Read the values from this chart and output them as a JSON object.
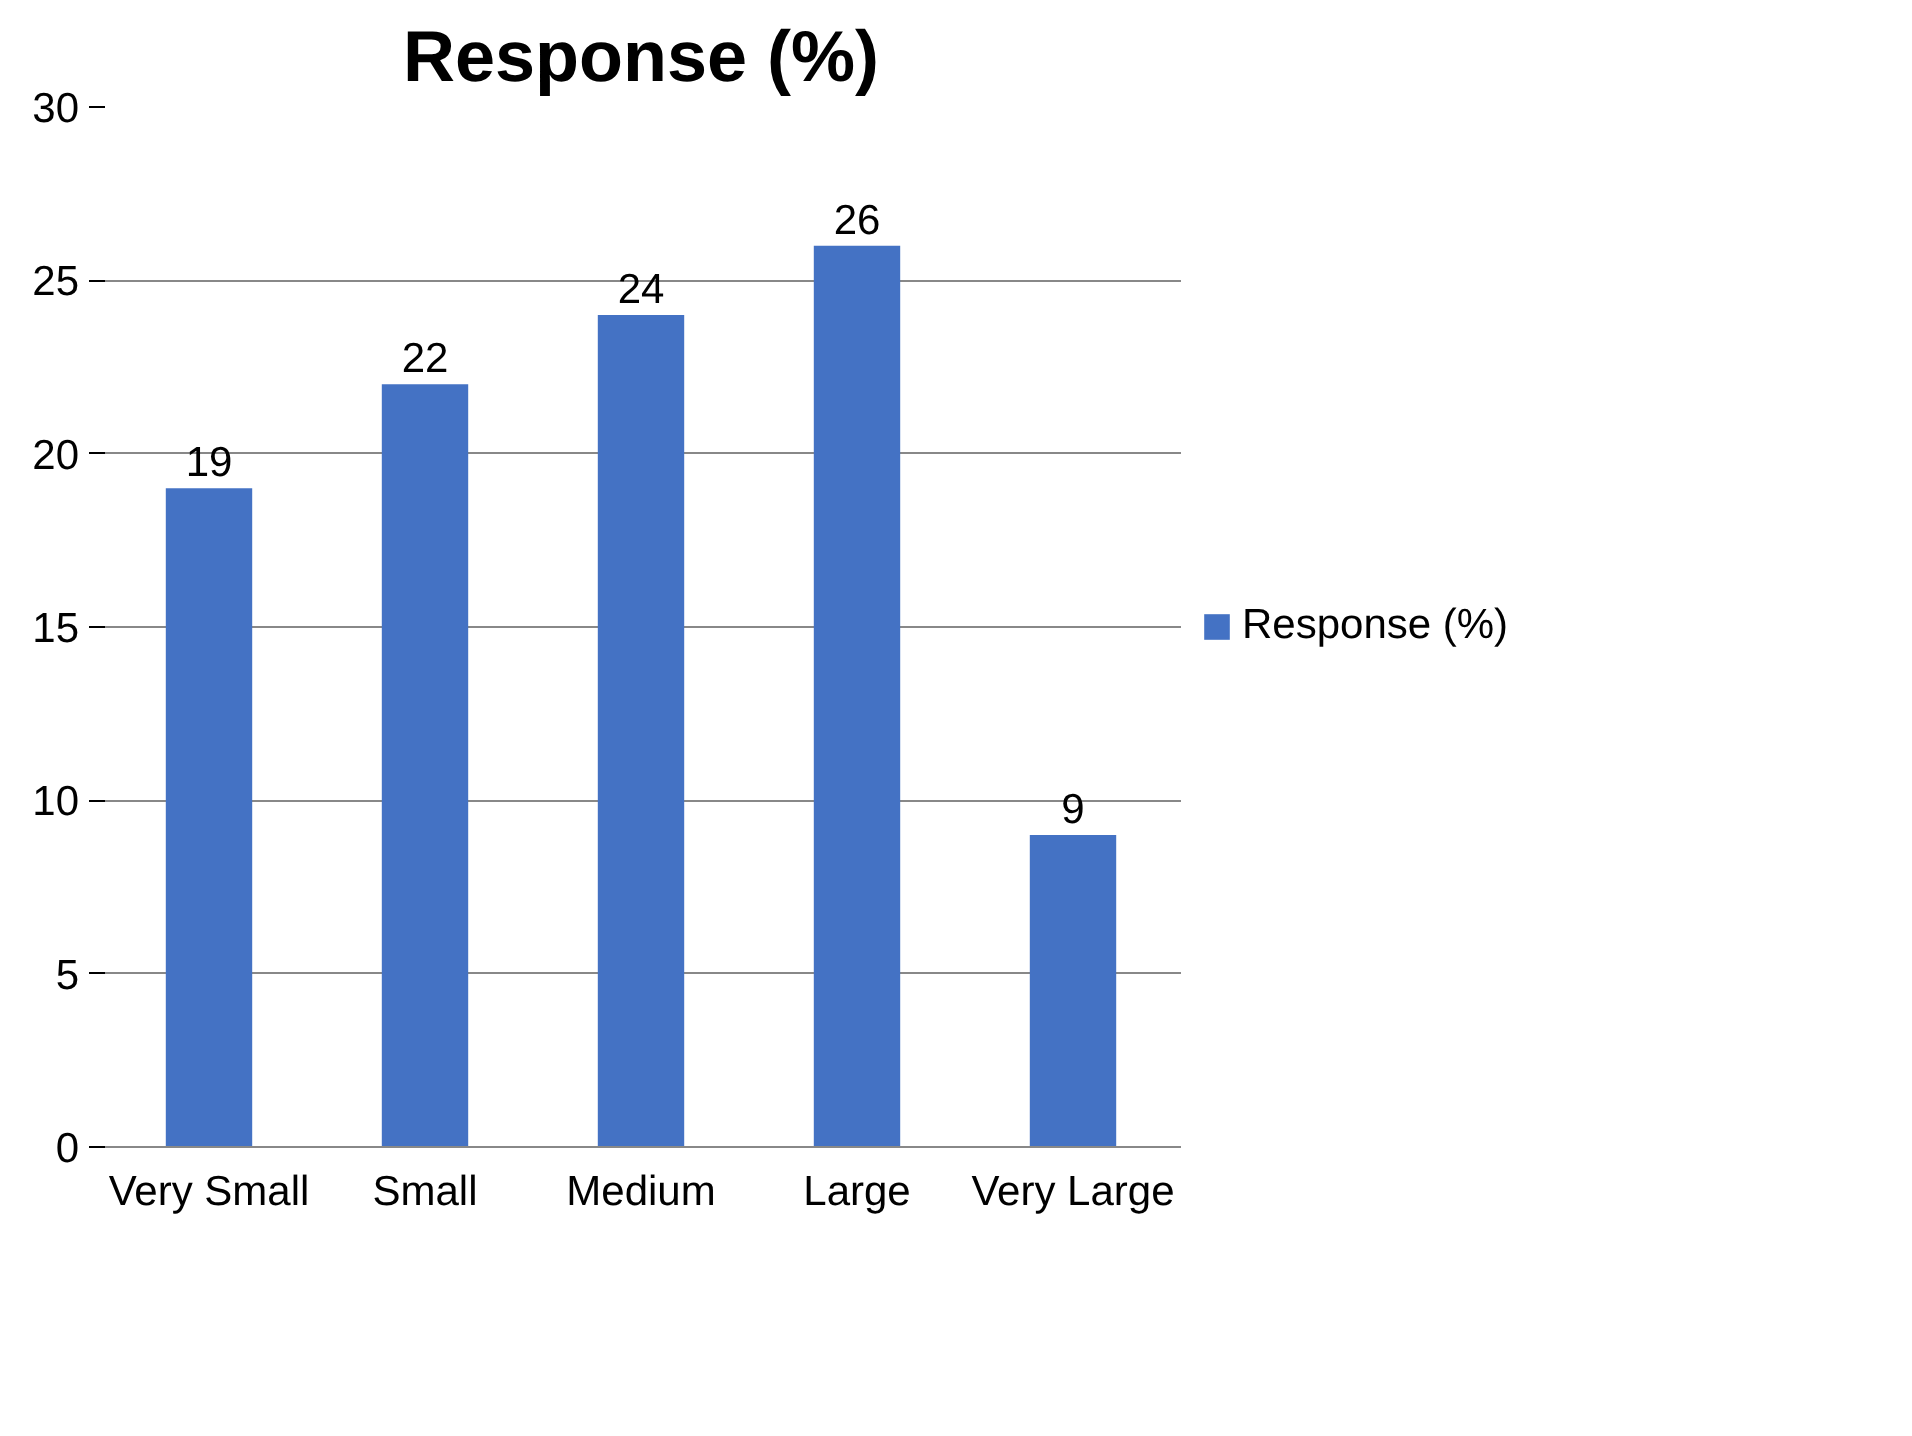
{
  "chart_data": {
    "type": "bar",
    "title": "Response (%)",
    "categories": [
      "Very Small",
      "Small",
      "Medium",
      "Large",
      "Very Large"
    ],
    "series": [
      {
        "name": "Response (%)",
        "color": "#4472c4",
        "values": [
          19,
          22,
          24,
          26,
          9
        ]
      }
    ],
    "ylim": [
      0,
      30
    ],
    "yticks": [
      0,
      5,
      10,
      15,
      20,
      25,
      30
    ],
    "grid": "y",
    "legend": "right",
    "data_labels": true
  }
}
